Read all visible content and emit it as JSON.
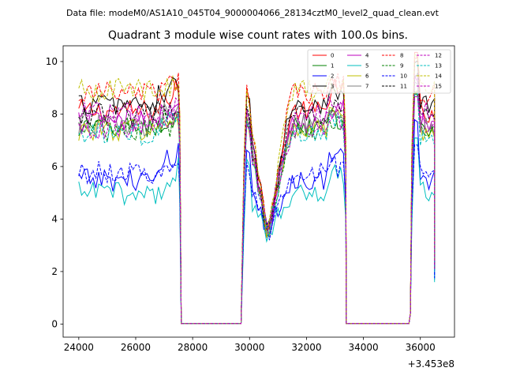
{
  "header": {
    "suptitle": "Data file: modeM0/AS1A10_045T04_9000004066_28134cztM0_level2_quad_clean.evt"
  },
  "chart_data": {
    "type": "line",
    "title": "Quadrant 3 module wise count rates with 100.0s bins.",
    "xlabel": "",
    "ylabel": "",
    "x_offset_label": "+3.453e8",
    "xlim": [
      23450,
      37200
    ],
    "ylim": [
      -0.5,
      10.6
    ],
    "xticks": [
      24000,
      26000,
      28000,
      30000,
      32000,
      34000,
      36000
    ],
    "xtick_labels": [
      "24000",
      "26000",
      "28000",
      "30000",
      "32000",
      "34000",
      "36000"
    ],
    "yticks": [
      0,
      2,
      4,
      6,
      8,
      10
    ],
    "ytick_labels": [
      "0",
      "2",
      "4",
      "6",
      "8",
      "10"
    ],
    "grid": false,
    "legend_position": "top-right",
    "segments": [
      {
        "start": 24000,
        "end": 27500,
        "dip": false
      },
      {
        "start": 29800,
        "end": 33300,
        "dip": true,
        "dip_center": 30650
      },
      {
        "start": 35700,
        "end": 36500,
        "dip": false
      }
    ],
    "gaps": [
      {
        "start": 27600,
        "end": 29700
      },
      {
        "start": 33400,
        "end": 35600
      }
    ],
    "series": [
      {
        "name": "0",
        "color": "#ff0000",
        "dash": "solid",
        "level": 8.1,
        "peak": 9.4
      },
      {
        "name": "1",
        "color": "#008000",
        "dash": "solid",
        "level": 7.5,
        "peak": 8.0
      },
      {
        "name": "2",
        "color": "#0000ff",
        "dash": "solid",
        "level": 5.5,
        "peak": 6.9
      },
      {
        "name": "3",
        "color": "#000000",
        "dash": "solid",
        "level": 8.4,
        "peak": 9.3
      },
      {
        "name": "4",
        "color": "#bf00bf",
        "dash": "solid",
        "level": 7.7,
        "peak": 8.6
      },
      {
        "name": "5",
        "color": "#00bfbf",
        "dash": "solid",
        "level": 5.0,
        "peak": 6.1
      },
      {
        "name": "6",
        "color": "#bfbf00",
        "dash": "solid",
        "level": 7.4,
        "peak": 8.0
      },
      {
        "name": "7",
        "color": "#808080",
        "dash": "solid",
        "level": 7.6,
        "peak": 8.3
      },
      {
        "name": "8",
        "color": "#ff0000",
        "dash": "dashed",
        "level": 8.8,
        "peak": 9.4
      },
      {
        "name": "9",
        "color": "#008000",
        "dash": "dashed",
        "level": 7.4,
        "peak": 8.0
      },
      {
        "name": "10",
        "color": "#0000ff",
        "dash": "dashed",
        "level": 5.8,
        "peak": 6.2
      },
      {
        "name": "11",
        "color": "#000000",
        "dash": "dashed",
        "level": 8.0,
        "peak": 8.6
      },
      {
        "name": "12",
        "color": "#bf00bf",
        "dash": "dashed",
        "level": 8.0,
        "peak": 8.5
      },
      {
        "name": "13",
        "color": "#00bfbf",
        "dash": "dashed",
        "level": 7.2,
        "peak": 8.0
      },
      {
        "name": "14",
        "color": "#bfbf00",
        "dash": "dashed",
        "level": 8.9,
        "peak": 9.4
      },
      {
        "name": "15",
        "color": "#bf00bf",
        "dash": "dashed",
        "level": 7.5,
        "peak": 8.0
      }
    ]
  }
}
